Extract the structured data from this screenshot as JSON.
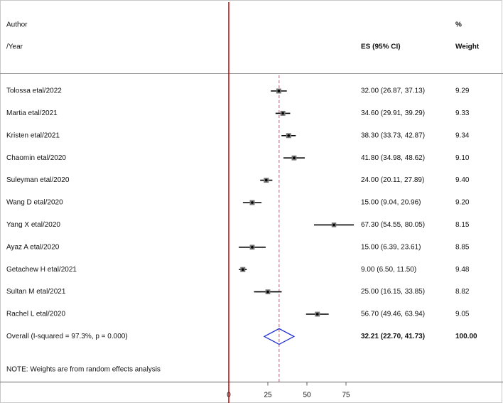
{
  "chart_data": {
    "type": "forest",
    "header": {
      "author": "Author",
      "year": "/Year",
      "es": "ES (95% CI)",
      "percent": "%",
      "weight": "Weight"
    },
    "categories": [
      "Tolossa etal/2022",
      "Martia etal/2021",
      "Kristen etal/2021",
      "Chaomin etal/2020",
      "Suleyman etal/2020",
      "Wang D etal/2020",
      "Yang X etal/2020",
      "Ayaz A etal/2020",
      "Getachew H etal/2021",
      "Sultan M etal/2021",
      "Rachel L etal/2020"
    ],
    "values": [
      32.0,
      34.6,
      38.3,
      41.8,
      24.0,
      15.0,
      67.3,
      15.0,
      9.0,
      25.0,
      56.7
    ],
    "lower": [
      26.87,
      29.91,
      33.73,
      34.98,
      20.11,
      9.04,
      54.55,
      6.39,
      6.5,
      16.15,
      49.46
    ],
    "upper": [
      37.13,
      39.29,
      42.87,
      48.62,
      27.89,
      20.96,
      80.05,
      23.61,
      11.5,
      33.85,
      63.94
    ],
    "value_labels": [
      "32.00 (26.87, 37.13)",
      "34.60 (29.91, 39.29)",
      "38.30 (33.73, 42.87)",
      "41.80 (34.98, 48.62)",
      "24.00 (20.11, 27.89)",
      "15.00 (9.04, 20.96)",
      "67.30 (54.55, 80.05)",
      "15.00 (6.39, 23.61)",
      "9.00 (6.50, 11.50)",
      "25.00 (16.15, 33.85)",
      "56.70 (49.46, 63.94)"
    ],
    "weights": [
      9.29,
      9.33,
      9.34,
      9.1,
      9.4,
      9.2,
      8.15,
      8.85,
      9.48,
      8.82,
      9.05
    ],
    "weight_labels": [
      "9.29",
      "9.33",
      "9.34",
      "9.10",
      "9.40",
      "9.20",
      "8.15",
      "8.85",
      "9.48",
      "8.82",
      "9.05"
    ],
    "overall": {
      "label": "Overall  (I-squared = 97.3%, p = 0.000)",
      "value": 32.21,
      "lower": 22.7,
      "upper": 41.73,
      "value_label": "32.21 (22.70, 41.73)",
      "weight": 100,
      "weight_label": "100.00"
    },
    "note": "NOTE: Weights are from random effects analysis",
    "xlim": [
      0,
      80
    ],
    "xticks": [
      0,
      25,
      50,
      75
    ],
    "marker_color": "#000000",
    "diamond_color": "#1f2fd6",
    "reference_color": "#c00000",
    "overall_line_color": "#b06070"
  }
}
